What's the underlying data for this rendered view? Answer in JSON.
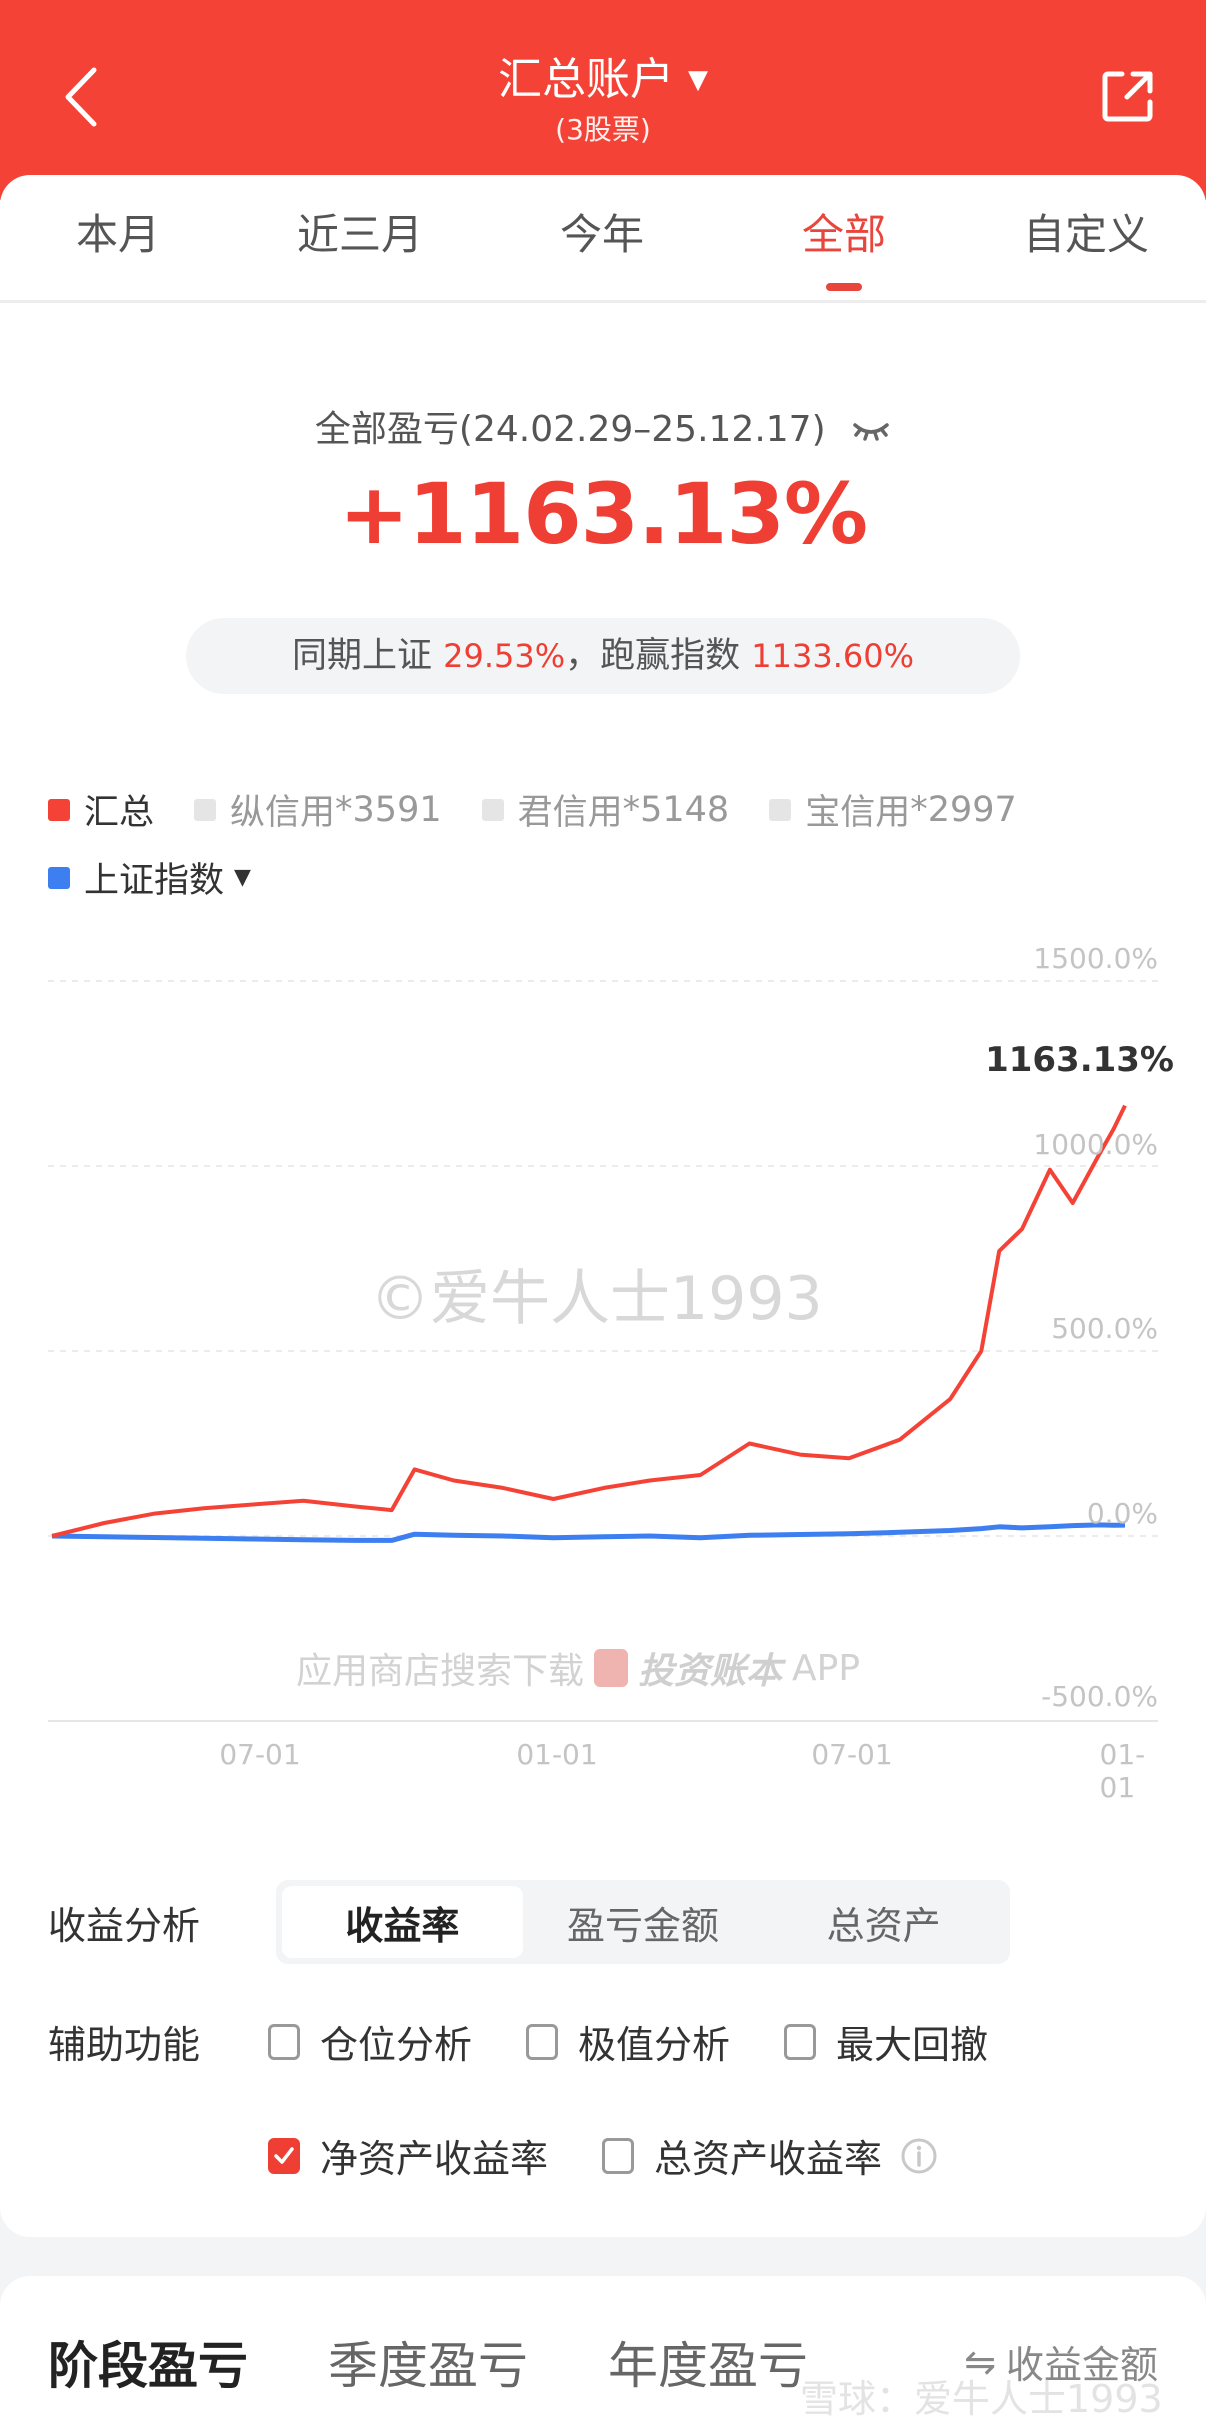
{
  "header": {
    "title": "汇总账户",
    "title_caret": "▼",
    "subtitle": "(3股票)",
    "back_icon": "chevron-left-icon",
    "share_icon": "share-external-icon",
    "background": "#f44336"
  },
  "tabs": [
    {
      "label": "本月",
      "active": false
    },
    {
      "label": "近三月",
      "active": false
    },
    {
      "label": "今年",
      "active": false
    },
    {
      "label": "全部",
      "active": true
    },
    {
      "label": "自定义",
      "active": false
    }
  ],
  "summary": {
    "label": "全部盈亏(24.02.29–25.12.17)",
    "visibility_icon": "eye-closed-icon",
    "total_return": "+1163.13%",
    "compare_prefix": "同期上证 ",
    "index_return": "29.53%",
    "compare_mid": "，跑赢指数 ",
    "excess_return": "1133.60%"
  },
  "legend": {
    "row1": [
      {
        "label": "汇总",
        "suffix": "",
        "color": "#f44336",
        "active": true
      },
      {
        "label": "纵信用",
        "suffix": " *3591",
        "color": "#e5e5e5",
        "active": false
      },
      {
        "label": "君信用",
        "suffix": " *5148",
        "color": "#e5e5e5",
        "active": false
      },
      {
        "label": "宝信用",
        "suffix": " *2997",
        "color": "#e5e5e5",
        "active": false
      }
    ],
    "row2": [
      {
        "label": "上证指数",
        "color": "#3d7ff0",
        "caret": "▼"
      }
    ]
  },
  "chart_data": {
    "type": "line",
    "title": "",
    "xlabel": "",
    "ylabel": "",
    "ylim": [
      -500,
      1500
    ],
    "y_ticks": [
      "1500.0%",
      "1000.0%",
      "500.0%",
      "0.0%",
      "-500.0%"
    ],
    "x_ticks": [
      "07-01",
      "01-01",
      "07-01",
      "01-01"
    ],
    "grid": true,
    "legend_position": "top",
    "end_label": "1163.13%",
    "x": [
      "2024-02-29",
      "2024-04-01",
      "2024-05-01",
      "2024-06-01",
      "2024-07-01",
      "2024-08-01",
      "2024-09-01",
      "2024-09-24",
      "2024-10-08",
      "2024-11-01",
      "2024-12-01",
      "2025-01-01",
      "2025-02-01",
      "2025-03-01",
      "2025-04-01",
      "2025-05-01",
      "2025-06-01",
      "2025-07-01",
      "2025-08-01",
      "2025-09-01",
      "2025-09-20",
      "2025-10-01",
      "2025-10-15",
      "2025-11-01",
      "2025-11-15",
      "2025-12-01",
      "2025-12-10",
      "2025-12-17"
    ],
    "series": [
      {
        "name": "汇总",
        "color": "#f44336",
        "values": [
          0,
          35,
          60,
          75,
          85,
          95,
          80,
          70,
          180,
          150,
          130,
          100,
          130,
          150,
          165,
          250,
          220,
          210,
          260,
          370,
          500,
          770,
          830,
          990,
          900,
          1030,
          1100,
          1163.13
        ]
      },
      {
        "name": "上证指数",
        "color": "#3d7ff0",
        "values": [
          0,
          -2,
          -4,
          -6,
          -8,
          -10,
          -12,
          -12,
          5,
          2,
          0,
          -5,
          -2,
          0,
          -5,
          2,
          4,
          6,
          10,
          15,
          20,
          25,
          22,
          25,
          28,
          30,
          29,
          29.53
        ]
      }
    ]
  },
  "watermarks": {
    "copyright": "©爱牛人士1993",
    "download_prefix": "应用商店搜索下载",
    "brand": "投资账本",
    "app": "APP",
    "xueqiu": "雪球：爱牛人士1993"
  },
  "analysis": {
    "label": "收益分析",
    "options": [
      {
        "label": "收益率",
        "active": true
      },
      {
        "label": "盈亏金额",
        "active": false
      },
      {
        "label": "总资产",
        "active": false
      }
    ]
  },
  "aux": {
    "label": "辅助功能",
    "options": [
      {
        "label": "仓位分析",
        "checked": false
      },
      {
        "label": "极值分析",
        "checked": false
      },
      {
        "label": "最大回撤",
        "checked": false
      }
    ],
    "options2": [
      {
        "label": "净资产收益率",
        "checked": true
      },
      {
        "label": "总资产收益率",
        "checked": false
      }
    ],
    "info_icon": "info-icon"
  },
  "period": {
    "tabs": [
      {
        "label": "阶段盈亏",
        "active": true
      },
      {
        "label": "季度盈亏",
        "active": false
      },
      {
        "label": "年度盈亏",
        "active": false
      }
    ],
    "switch_icon": "⇋",
    "switch_label": "收益金额"
  }
}
